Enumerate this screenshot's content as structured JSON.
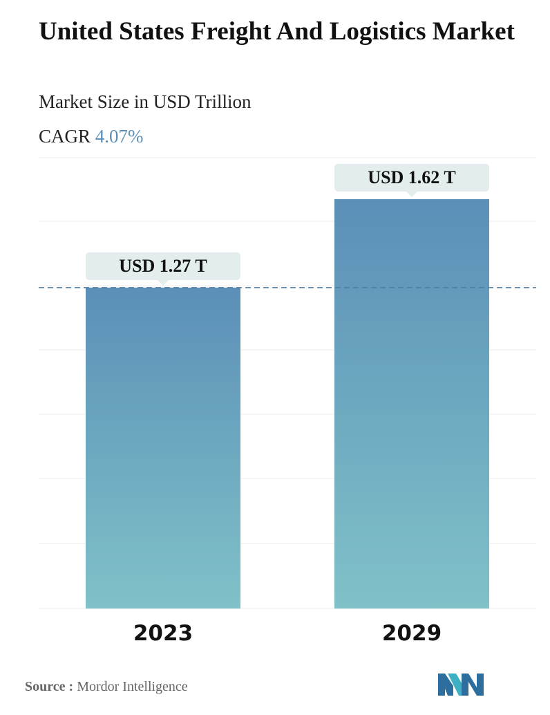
{
  "title": "United States Freight And Logistics Market",
  "subtitle": "Market Size in USD Trillion",
  "cagr": {
    "label": "CAGR",
    "value": "4.07%"
  },
  "source": {
    "label": "Source :",
    "text": "Mordor Intelligence"
  },
  "colors": {
    "bar_top": "#5b8fb7",
    "bar_bottom": "#80c1c8",
    "callout": "#e3eded",
    "dashed_line": "#4f7ea5",
    "grid": "#eeeeee"
  },
  "chart_data": {
    "type": "bar",
    "categories": [
      "2023",
      "2029"
    ],
    "values": [
      1.27,
      1.62
    ],
    "data_labels": [
      "USD 1.27 T",
      "USD 1.62 T"
    ],
    "reference_line": {
      "value": 1.27,
      "style": "dashed"
    },
    "grid": true
  }
}
